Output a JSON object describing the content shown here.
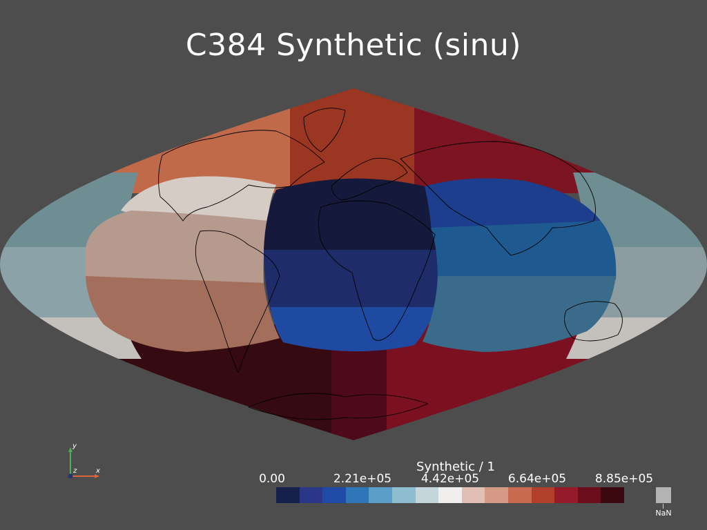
{
  "title": "C384 Synthetic (sinu)",
  "colorbar": {
    "title": "Synthetic / 1",
    "ticks": [
      "0.00",
      "2.21e+05",
      "4.42e+05",
      "6.64e+05",
      "8.85e+05"
    ],
    "range": [
      0,
      885000
    ],
    "swatches": [
      "#16204a",
      "#2a3688",
      "#1f4aa6",
      "#2f76b8",
      "#5a9ec8",
      "#8ebdd0",
      "#c5d5dc",
      "#f1efee",
      "#e2bfb4",
      "#d49a86",
      "#c76a50",
      "#b0402c",
      "#951a2a",
      "#6c0d1e",
      "#3b0810"
    ],
    "nan_label": "NaN",
    "nan_color": "#b4b4b4"
  },
  "orientation_axes": {
    "y": "y",
    "x": "x",
    "z": "z"
  },
  "map": {
    "projection": "sinusoidal",
    "panel_colors": {
      "africa_face_top": "#151a3c",
      "africa_face_mid": "#1f2c6a",
      "africa_face_bottom": "#1f4aa2",
      "asia_face_top": "#1c3e8c",
      "asia_face_mid": "#1e5a90",
      "asia_face_bottom": "#3a6b8a",
      "america_face_top": "#d6ccc6",
      "america_face_mid": "#b79a8e",
      "america_face_bottom": "#a36e5c",
      "pacific_left_top": "#6f8e94",
      "pacific_left_mid": "#8ba3a8",
      "pacific_left_bottom": "#c4c0bc",
      "pacific_right_top": "#6f8e94",
      "pacific_right_mid": "#8c9ca0",
      "pacific_right_bottom": "#c4c0bc",
      "north_face_left": "#c06a4a",
      "north_face_mid": "#9a3622",
      "north_face_right": "#7c1422",
      "south_face_left": "#350a10",
      "south_face_mid": "#4e0a1a",
      "south_face_right": "#7a1020"
    }
  }
}
